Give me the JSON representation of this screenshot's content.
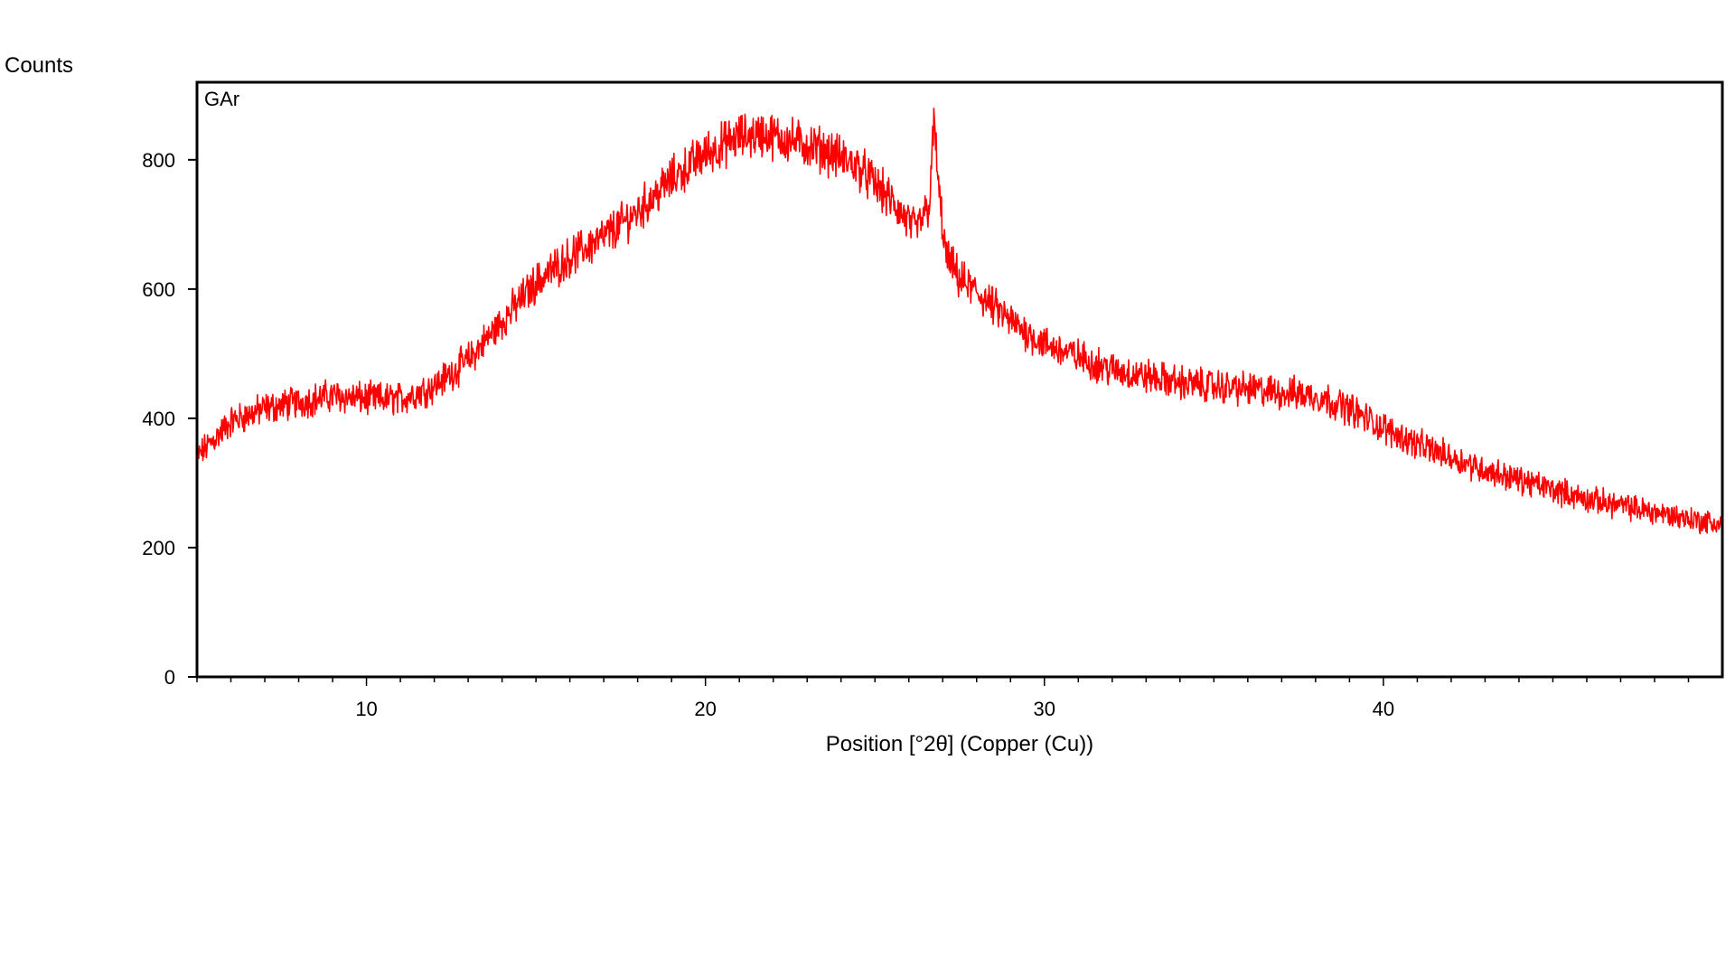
{
  "chart_data": {
    "type": "line",
    "sample_label": "GAr",
    "ylabel": "Counts",
    "xlabel": "Position [°2θ] (Copper (Cu))",
    "xlim": [
      5,
      50
    ],
    "ylim": [
      0,
      920
    ],
    "x_ticks": [
      10,
      20,
      30,
      40
    ],
    "y_ticks": [
      0,
      200,
      400,
      600,
      800
    ],
    "x_minor_step": 1,
    "grid": false,
    "series": [
      {
        "color": "#ff0000",
        "x": [
          5,
          6,
          7,
          8,
          9,
          10,
          11,
          12,
          13,
          14,
          15,
          16,
          17,
          18,
          19,
          20,
          21,
          21.7,
          22.5,
          23.5,
          24.5,
          25.5,
          26.2,
          26.6,
          26.75,
          26.9,
          27.1,
          27.5,
          28,
          29,
          30,
          31,
          32,
          33,
          34,
          35,
          36,
          37,
          38,
          39,
          40,
          41,
          42,
          43,
          44,
          45,
          46,
          47,
          48,
          49,
          50
        ],
        "y": [
          340,
          395,
          415,
          425,
          435,
          430,
          430,
          450,
          490,
          550,
          610,
          650,
          680,
          720,
          770,
          810,
          835,
          840,
          830,
          815,
          790,
          735,
          690,
          730,
          860,
          740,
          650,
          615,
          595,
          550,
          515,
          495,
          475,
          465,
          455,
          450,
          445,
          440,
          435,
          415,
          385,
          360,
          340,
          320,
          305,
          290,
          275,
          265,
          255,
          245,
          235
        ],
        "noise_amplitude": 22
      }
    ]
  }
}
